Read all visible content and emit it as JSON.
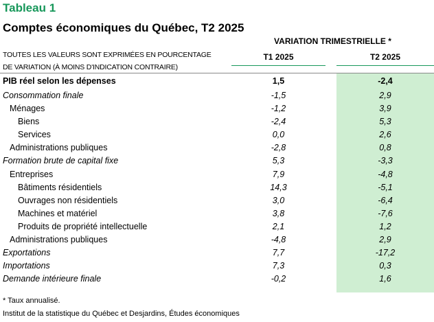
{
  "title": "Tableau 1",
  "subtitle": "Comptes économiques du Québec, T2 2025",
  "header": {
    "group": "VARIATION TRIMESTRIELLE *",
    "note_line1": "TOUTES LES VALEURS SONT EXPRIMÉES EN POURCENTAGE",
    "note_line2": "DE VARIATION (À MOINS D'INDICATION CONTRAIRE)",
    "col1": "T1 2025",
    "col2": "T2 2025"
  },
  "colors": {
    "accent": "#17975a",
    "highlight": "#cfeed2"
  },
  "rows": [
    {
      "label": "PIB réel selon les dépenses",
      "t1": "1,5",
      "t2": "-2,4",
      "level": 0,
      "style": "bold"
    },
    {
      "label": "Consommation finale",
      "t1": "-1,5",
      "t2": "2,9",
      "level": 0,
      "style": "italic"
    },
    {
      "label": "Ménages",
      "t1": "-1,2",
      "t2": "3,9",
      "level": 1,
      "style": "normal"
    },
    {
      "label": "Biens",
      "t1": "-2,4",
      "t2": "5,3",
      "level": 2,
      "style": "normal"
    },
    {
      "label": "Services",
      "t1": "0,0",
      "t2": "2,6",
      "level": 2,
      "style": "normal"
    },
    {
      "label": "Administrations publiques",
      "t1": "-2,8",
      "t2": "0,8",
      "level": 1,
      "style": "normal"
    },
    {
      "label": "Formation brute de capital fixe",
      "t1": "5,3",
      "t2": "-3,3",
      "level": 0,
      "style": "italic"
    },
    {
      "label": "Entreprises",
      "t1": "7,9",
      "t2": "-4,8",
      "level": 1,
      "style": "normal"
    },
    {
      "label": "Bâtiments résidentiels",
      "t1": "14,3",
      "t2": "-5,1",
      "level": 2,
      "style": "normal"
    },
    {
      "label": "Ouvrages non résidentiels",
      "t1": "3,0",
      "t2": "-6,4",
      "level": 2,
      "style": "normal"
    },
    {
      "label": "Machines et matériel",
      "t1": "3,8",
      "t2": "-7,6",
      "level": 2,
      "style": "normal"
    },
    {
      "label": "Produits de propriété intellectuelle",
      "t1": "2,1",
      "t2": "1,2",
      "level": 2,
      "style": "normal"
    },
    {
      "label": "Administrations publiques",
      "t1": "-4,8",
      "t2": "2,9",
      "level": 1,
      "style": "normal"
    },
    {
      "label": "Exportations",
      "t1": "7,7",
      "t2": "-17,2",
      "level": 0,
      "style": "italic"
    },
    {
      "label": "Importations",
      "t1": "7,3",
      "t2": "0,3",
      "level": 0,
      "style": "italic"
    },
    {
      "label": "Demande intérieure finale",
      "t1": "-0,2",
      "t2": "1,6",
      "level": 0,
      "style": "italic"
    }
  ],
  "footnote": "* Taux annualisé.",
  "source": "Institut de la statistique du Québec et Desjardins, Études économiques"
}
